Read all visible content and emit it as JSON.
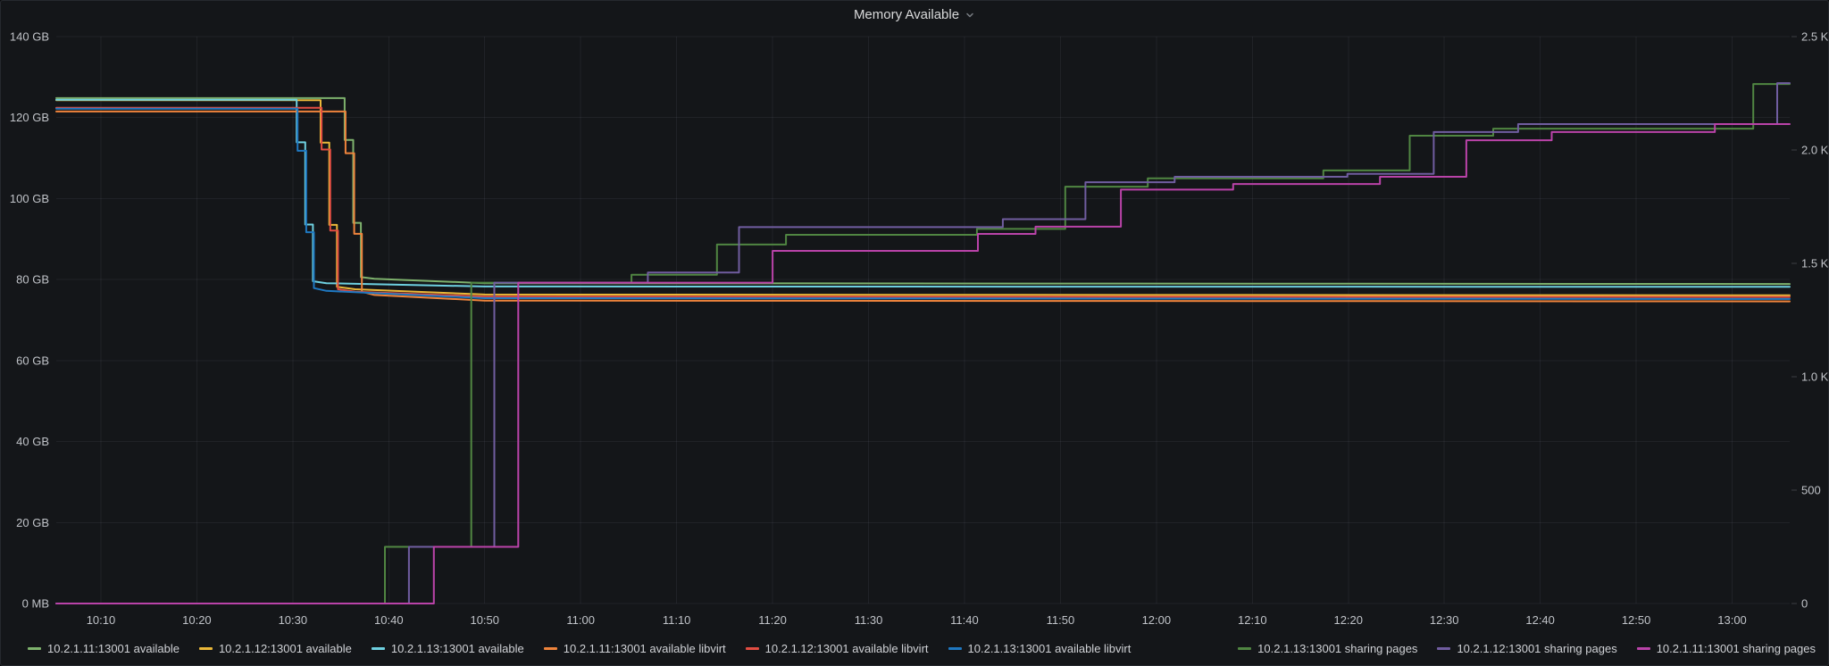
{
  "panel": {
    "title": "Memory Available",
    "background_color": "#141619",
    "grid_color": "rgba(204,204,220,0.07)",
    "text_color": "#c0c3c8"
  },
  "chart_data": {
    "type": "line",
    "title": "Memory Available",
    "legend_position": "bottom",
    "grid": true,
    "x_axis": {
      "unit": "time",
      "range_minutes": [
        5.35,
        186
      ],
      "ticks": [
        {
          "label": "10:10",
          "minute": 10
        },
        {
          "label": "10:20",
          "minute": 20
        },
        {
          "label": "10:30",
          "minute": 30
        },
        {
          "label": "10:40",
          "minute": 40
        },
        {
          "label": "10:50",
          "minute": 50
        },
        {
          "label": "11:00",
          "minute": 60
        },
        {
          "label": "11:10",
          "minute": 70
        },
        {
          "label": "11:20",
          "minute": 80
        },
        {
          "label": "11:30",
          "minute": 90
        },
        {
          "label": "11:40",
          "minute": 100
        },
        {
          "label": "11:50",
          "minute": 110
        },
        {
          "label": "12:00",
          "minute": 120
        },
        {
          "label": "12:10",
          "minute": 130
        },
        {
          "label": "12:20",
          "minute": 140
        },
        {
          "label": "12:30",
          "minute": 150
        },
        {
          "label": "12:40",
          "minute": 160
        },
        {
          "label": "12:50",
          "minute": 170
        },
        {
          "label": "13:00",
          "minute": 180
        }
      ]
    },
    "y_left": {
      "unit": "GB",
      "range": [
        0,
        140
      ],
      "ticks": [
        {
          "label": "140 GB",
          "value": 140
        },
        {
          "label": "120 GB",
          "value": 120
        },
        {
          "label": "100 GB",
          "value": 100
        },
        {
          "label": "80 GB",
          "value": 80
        },
        {
          "label": "60 GB",
          "value": 60
        },
        {
          "label": "40 GB",
          "value": 40
        },
        {
          "label": "20 GB",
          "value": 20
        },
        {
          "label": "0 MB",
          "value": 0
        }
      ]
    },
    "y_right": {
      "unit": "pages",
      "range": [
        0,
        2500
      ],
      "ticks": [
        {
          "label": "2.5 K",
          "value": 2500
        },
        {
          "label": "2.0 K",
          "value": 2000
        },
        {
          "label": "1.5 K",
          "value": 1500
        },
        {
          "label": "1.0 K",
          "value": 1000
        },
        {
          "label": "500",
          "value": 500
        },
        {
          "label": "0",
          "value": 0
        }
      ]
    },
    "series": [
      {
        "name": "10.2.1.11:13001 available",
        "axis": "left",
        "color": "#7EB26D",
        "points": [
          [
            5.35,
            124.8
          ],
          [
            35.4,
            124.8
          ],
          [
            35.4,
            114.5
          ],
          [
            36.3,
            114.5
          ],
          [
            36.3,
            94
          ],
          [
            37.1,
            94
          ],
          [
            37.1,
            80.6
          ],
          [
            38.5,
            80.2
          ],
          [
            50,
            79.1
          ],
          [
            186,
            78.9
          ]
        ]
      },
      {
        "name": "10.2.1.12:13001 available",
        "axis": "left",
        "color": "#EAB839",
        "points": [
          [
            5.35,
            124.3
          ],
          [
            32.9,
            124.3
          ],
          [
            32.9,
            113.8
          ],
          [
            33.8,
            113.8
          ],
          [
            33.8,
            93.5
          ],
          [
            34.6,
            93.5
          ],
          [
            34.6,
            78.2
          ],
          [
            36.5,
            77.6
          ],
          [
            50,
            76.3
          ],
          [
            186,
            76.1
          ]
        ]
      },
      {
        "name": "10.2.1.13:13001 available",
        "axis": "left",
        "color": "#6ED0E0",
        "points": [
          [
            5.35,
            124.4
          ],
          [
            30.4,
            124.4
          ],
          [
            30.4,
            113.9
          ],
          [
            31.3,
            113.9
          ],
          [
            31.3,
            93.6
          ],
          [
            32.1,
            93.6
          ],
          [
            32.1,
            79.6
          ],
          [
            33.5,
            79.1
          ],
          [
            50,
            78.3
          ],
          [
            186,
            78.2
          ]
        ]
      },
      {
        "name": "10.2.1.11:13001 available libvirt",
        "axis": "left",
        "color": "#EF843C",
        "points": [
          [
            5.35,
            121.5
          ],
          [
            35.5,
            121.5
          ],
          [
            35.5,
            111.2
          ],
          [
            36.4,
            111.2
          ],
          [
            36.4,
            91.3
          ],
          [
            37.2,
            91.3
          ],
          [
            37.2,
            77
          ],
          [
            38.5,
            76.2
          ],
          [
            50,
            74.8
          ],
          [
            186,
            74.6
          ]
        ]
      },
      {
        "name": "10.2.1.12:13001 available libvirt",
        "axis": "left",
        "color": "#E24D42",
        "points": [
          [
            5.35,
            122.4
          ],
          [
            33.0,
            122.4
          ],
          [
            33.0,
            112.1
          ],
          [
            33.9,
            112.1
          ],
          [
            33.9,
            92.1
          ],
          [
            34.7,
            92.1
          ],
          [
            34.7,
            77.6
          ],
          [
            36.5,
            77
          ],
          [
            50,
            75.8
          ],
          [
            186,
            75.7
          ]
        ]
      },
      {
        "name": "10.2.1.13:13001 available libvirt",
        "axis": "left",
        "color": "#1F78C1",
        "points": [
          [
            5.35,
            122.2
          ],
          [
            30.5,
            122.2
          ],
          [
            30.5,
            111.8
          ],
          [
            31.4,
            111.8
          ],
          [
            31.4,
            91.7
          ],
          [
            32.2,
            91.7
          ],
          [
            32.2,
            77.9
          ],
          [
            33.5,
            77.2
          ],
          [
            50,
            75.4
          ],
          [
            186,
            75.2
          ]
        ]
      },
      {
        "name": "10.2.1.13:13001 sharing pages",
        "axis": "right",
        "color": "#508642",
        "points": [
          [
            5.35,
            0
          ],
          [
            39.6,
            0
          ],
          [
            39.6,
            250
          ],
          [
            48.6,
            250
          ],
          [
            48.6,
            1415
          ],
          [
            65.3,
            1415
          ],
          [
            65.3,
            1450
          ],
          [
            74.2,
            1450
          ],
          [
            74.2,
            1583
          ],
          [
            81.4,
            1583
          ],
          [
            81.4,
            1626
          ],
          [
            101.3,
            1626
          ],
          [
            101.3,
            1652
          ],
          [
            110.5,
            1652
          ],
          [
            110.5,
            1838
          ],
          [
            119.1,
            1838
          ],
          [
            119.1,
            1875
          ],
          [
            137.4,
            1875
          ],
          [
            137.4,
            1910
          ],
          [
            146.4,
            1910
          ],
          [
            146.4,
            2063
          ],
          [
            155.1,
            2063
          ],
          [
            155.1,
            2094
          ],
          [
            182.2,
            2094
          ],
          [
            182.2,
            2291
          ],
          [
            186,
            2291
          ]
        ]
      },
      {
        "name": "10.2.1.12:13001 sharing pages",
        "axis": "right",
        "color": "#705DA0",
        "points": [
          [
            5.35,
            0
          ],
          [
            42.1,
            0
          ],
          [
            42.1,
            250
          ],
          [
            51.0,
            250
          ],
          [
            51.0,
            1415
          ],
          [
            67,
            1415
          ],
          [
            67,
            1460
          ],
          [
            76.5,
            1460
          ],
          [
            76.5,
            1660
          ],
          [
            104,
            1660
          ],
          [
            104,
            1695
          ],
          [
            112.6,
            1695
          ],
          [
            112.6,
            1858
          ],
          [
            121.9,
            1858
          ],
          [
            121.9,
            1882
          ],
          [
            139.9,
            1882
          ],
          [
            139.9,
            1895
          ],
          [
            148.9,
            1895
          ],
          [
            148.9,
            2079
          ],
          [
            157.7,
            2079
          ],
          [
            157.7,
            2114
          ],
          [
            184.7,
            2114
          ],
          [
            184.7,
            2295
          ],
          [
            186,
            2295
          ]
        ]
      },
      {
        "name": "10.2.1.11:13001 sharing pages",
        "axis": "right",
        "color": "#BA43A9",
        "points": [
          [
            5.35,
            0
          ],
          [
            44.7,
            0
          ],
          [
            44.7,
            250
          ],
          [
            53.5,
            250
          ],
          [
            53.5,
            1415
          ],
          [
            80,
            1415
          ],
          [
            80,
            1555
          ],
          [
            101.4,
            1555
          ],
          [
            101.4,
            1630
          ],
          [
            107.4,
            1630
          ],
          [
            107.4,
            1662
          ],
          [
            116.3,
            1662
          ],
          [
            116.3,
            1825
          ],
          [
            128,
            1825
          ],
          [
            128,
            1850
          ],
          [
            143.3,
            1850
          ],
          [
            143.3,
            1882
          ],
          [
            152.3,
            1882
          ],
          [
            152.3,
            2043
          ],
          [
            161.2,
            2043
          ],
          [
            161.2,
            2079
          ],
          [
            178.2,
            2079
          ],
          [
            178.2,
            2114
          ],
          [
            186,
            2114
          ]
        ]
      }
    ]
  },
  "legend": {
    "available": [
      {
        "label": "10.2.1.11:13001 available",
        "color": "#7EB26D"
      },
      {
        "label": "10.2.1.12:13001 available",
        "color": "#EAB839"
      },
      {
        "label": "10.2.1.13:13001 available",
        "color": "#6ED0E0"
      },
      {
        "label": "10.2.1.11:13001 available libvirt",
        "color": "#EF843C"
      },
      {
        "label": "10.2.1.12:13001 available libvirt",
        "color": "#E24D42"
      },
      {
        "label": "10.2.1.13:13001 available libvirt",
        "color": "#1F78C1"
      }
    ],
    "sharing": [
      {
        "label": "10.2.1.13:13001 sharing pages",
        "color": "#508642"
      },
      {
        "label": "10.2.1.12:13001 sharing pages",
        "color": "#705DA0"
      },
      {
        "label": "10.2.1.11:13001 sharing pages",
        "color": "#BA43A9"
      }
    ]
  }
}
